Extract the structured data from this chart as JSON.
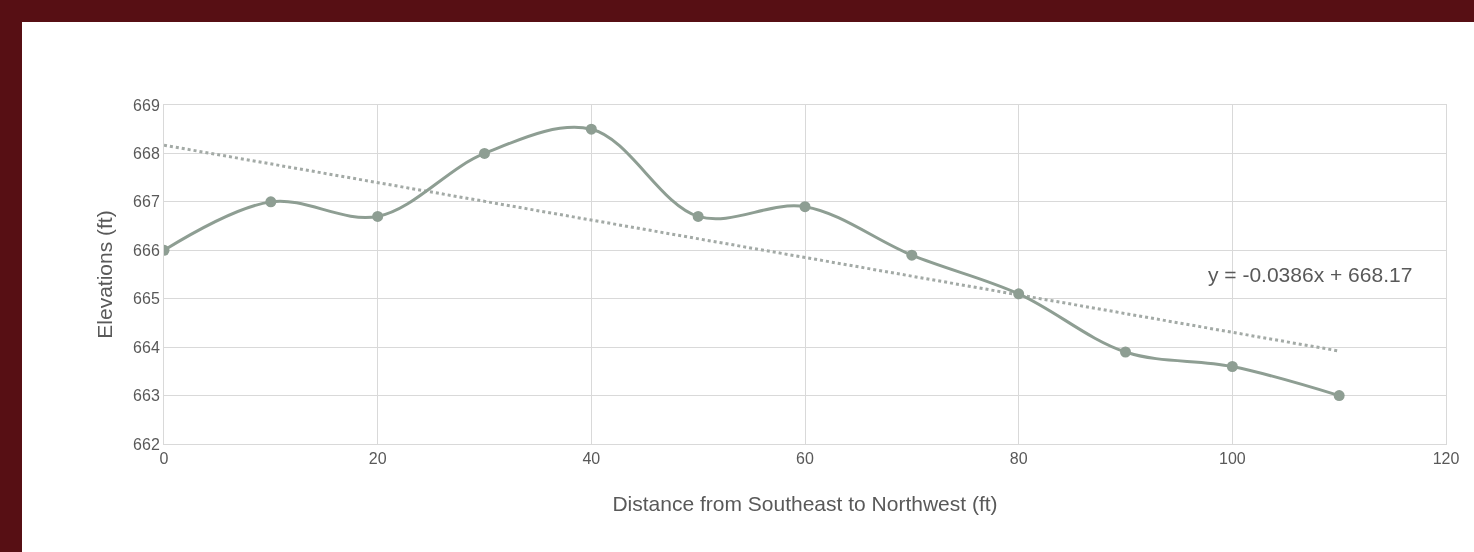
{
  "chart_data": {
    "type": "line",
    "xlabel": "Distance from Southeast to Northwest (ft)",
    "ylabel": "Elevations (ft)",
    "x": [
      0,
      10,
      20,
      30,
      40,
      50,
      60,
      70,
      80,
      90,
      100,
      110
    ],
    "series": [
      {
        "color": "#8e9e93",
        "values": [
          666,
          667,
          666.7,
          668,
          668.5,
          666.7,
          666.9,
          665.9,
          665.1,
          663.9,
          663.6,
          663.0
        ]
      },
      {
        "type": "line",
        "color": "#a3aaa6",
        "x": [
          0,
          110
        ],
        "values": [
          668.17,
          663.92
        ],
        "line_style": "dotted",
        "marker": "none"
      }
    ],
    "annotations": [
      "y = -0.0386x + 668.17"
    ],
    "xlim": [
      0,
      120
    ],
    "xticks": [
      0,
      20,
      40,
      60,
      80,
      100,
      120
    ],
    "ylim": [
      662,
      669
    ],
    "yticks": [
      662,
      663,
      664,
      665,
      666,
      667,
      668,
      669
    ],
    "grid": true,
    "marker": "circle",
    "line_style": "solid"
  }
}
